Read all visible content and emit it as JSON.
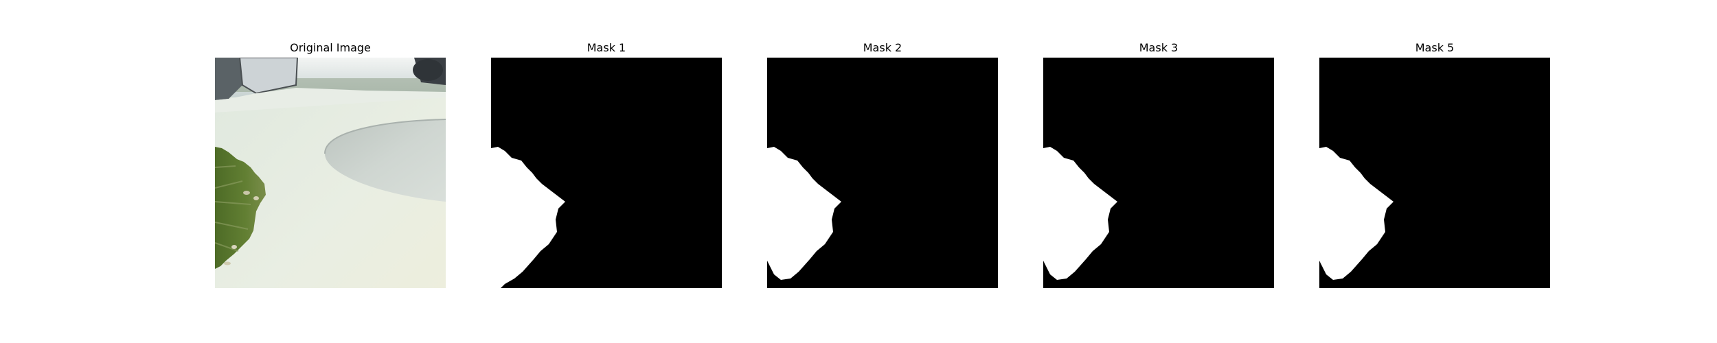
{
  "panels": [
    {
      "id": "original",
      "title": "Original Image"
    },
    {
      "id": "mask1",
      "title": "Mask 1"
    },
    {
      "id": "mask2",
      "title": "Mask 2"
    },
    {
      "id": "mask3",
      "title": "Mask 3"
    },
    {
      "id": "mask5",
      "title": "Mask 5"
    }
  ],
  "colors": {
    "background": "#ffffff",
    "mask_background": "#000000",
    "mask_foreground": "#ffffff",
    "leaf_green": "#5e7a32",
    "surface": "#e6ece2"
  }
}
